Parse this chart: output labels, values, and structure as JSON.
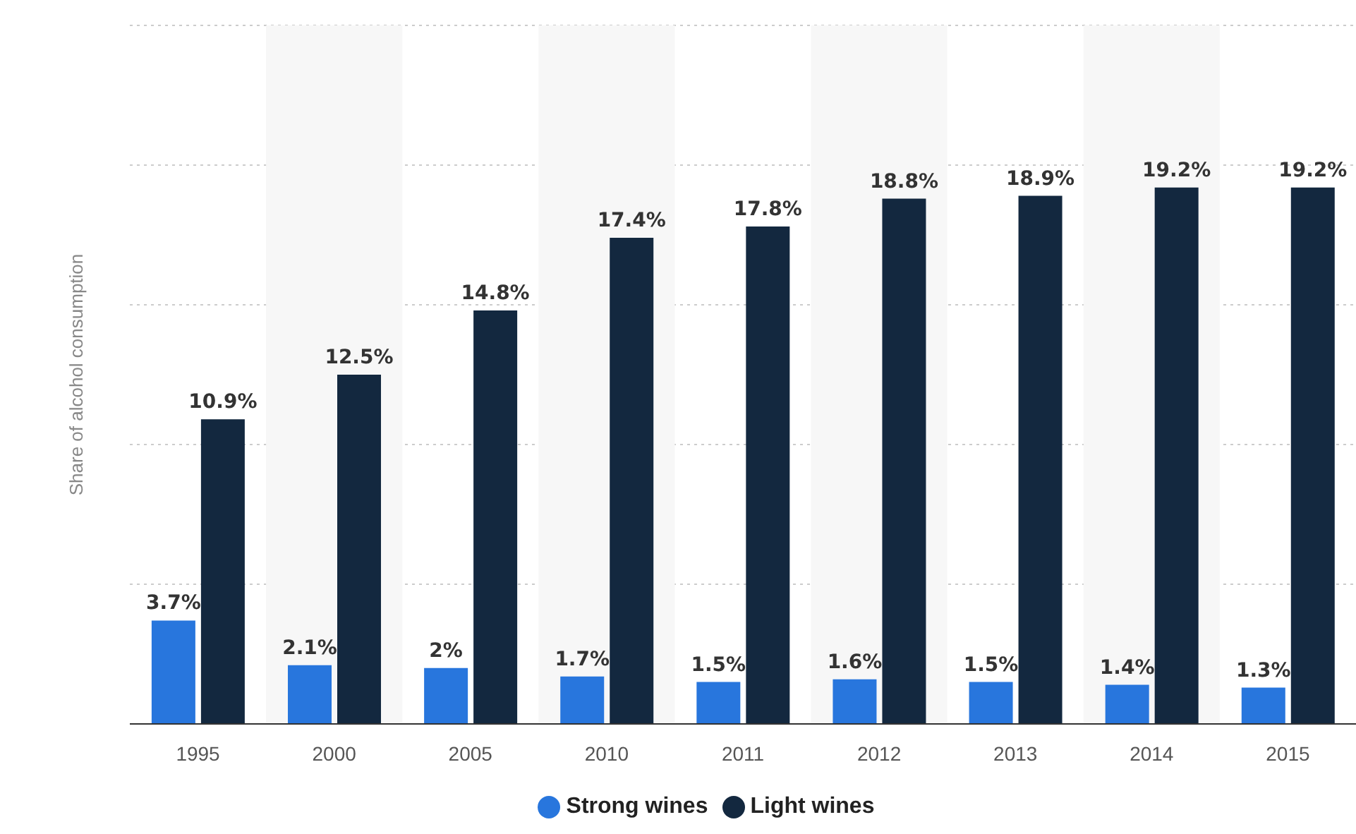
{
  "chart_data": {
    "type": "bar",
    "ylabel": "Share of alcohol consumption",
    "categories": [
      "1995",
      "2000",
      "2005",
      "2010",
      "2011",
      "2012",
      "2013",
      "2014",
      "2015"
    ],
    "series": [
      {
        "name": "Strong wines",
        "color": "#2876dd",
        "values": [
          3.7,
          2.1,
          2,
          1.7,
          1.5,
          1.6,
          1.5,
          1.4,
          1.3
        ],
        "value_labels": [
          "3.7%",
          "2.1%",
          "2%",
          "1.7%",
          "1.5%",
          "1.6%",
          "1.5%",
          "1.4%",
          "1.3%"
        ]
      },
      {
        "name": "Light wines",
        "color": "#13283f",
        "values": [
          10.9,
          12.5,
          14.8,
          17.4,
          17.8,
          18.8,
          18.9,
          19.2,
          19.2
        ],
        "value_labels": [
          "10.9%",
          "12.5%",
          "14.8%",
          "17.4%",
          "17.8%",
          "18.8%",
          "18.9%",
          "19.2%",
          "19.2%"
        ]
      }
    ],
    "ylim": [
      0,
      25
    ],
    "tick_labels": "x",
    "grid": "y",
    "legend": "bottom",
    "bands": [
      {
        "axis": "x",
        "from": "2000",
        "to": "2000",
        "color": "#f7f7f7"
      },
      {
        "axis": "x",
        "from": "2010",
        "to": "2010",
        "color": "#f7f7f7"
      },
      {
        "axis": "x",
        "from": "2012",
        "to": "2012",
        "color": "#f7f7f7"
      },
      {
        "axis": "x",
        "from": "2014",
        "to": "2014",
        "color": "#f7f7f7"
      }
    ]
  }
}
